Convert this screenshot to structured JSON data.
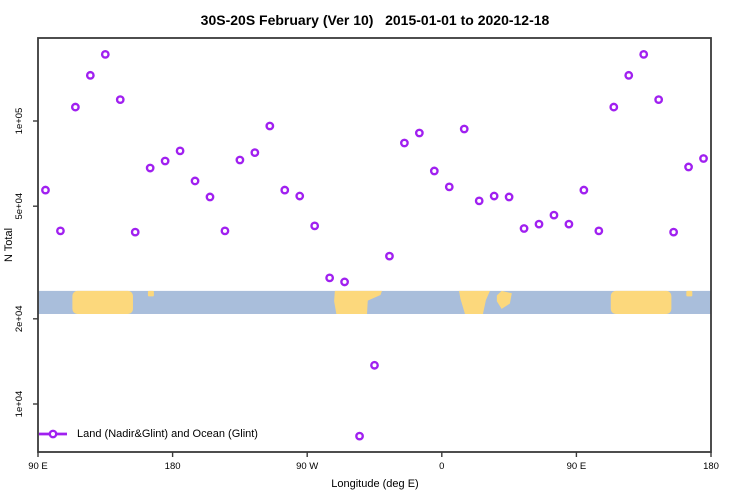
{
  "chart_data": {
    "type": "scatter",
    "title": "30S-20S February (Ver 10)   2015-01-01 to 2020-12-18",
    "xlabel": "Longitude (deg E)",
    "ylabel": "N Total",
    "y_scale": "log",
    "grid": false,
    "xlim": [
      90,
      540
    ],
    "ylim": [
      6800,
      196000
    ],
    "x_ticks": [
      {
        "deg": 90,
        "label": "90 E"
      },
      {
        "deg": 180,
        "label": "180"
      },
      {
        "deg": 270,
        "label": "90 W"
      },
      {
        "deg": 360,
        "label": "0"
      },
      {
        "deg": 450,
        "label": "90 E"
      },
      {
        "deg": 540,
        "label": "180"
      }
    ],
    "y_ticks": [
      {
        "value": 100000,
        "label": "1e+05"
      },
      {
        "value": 50000,
        "label": "5e+04"
      },
      {
        "value": 20000,
        "label": "2e+04"
      },
      {
        "value": 10000,
        "label": "1e+04"
      }
    ],
    "legend": {
      "label": "Land (Nadir&Glint) and Ocean (Glint)",
      "position": "bottom-left",
      "marker": "open-circle-on-line"
    },
    "colors": {
      "series": "#A020F0",
      "ocean": "#A9BEDB",
      "land": "#FCD87C",
      "axis": "#3a3a3a",
      "text": "#000000"
    },
    "series": [
      {
        "name": "Land (Nadir&Glint) and Ocean (Glint)",
        "color": "#A020F0",
        "marker": "open-circle",
        "x": [
          95,
          105,
          115,
          125,
          135,
          145,
          155,
          165,
          175,
          185,
          195,
          205,
          215,
          225,
          235,
          245,
          255,
          265,
          275,
          285,
          295,
          305,
          315,
          325,
          335,
          345,
          355,
          365,
          375,
          385,
          395,
          405,
          415,
          425,
          435,
          445,
          455,
          465,
          475,
          485,
          495,
          505,
          515,
          525,
          535
        ],
        "y": [
          57000,
          40900,
          112000,
          145000,
          172000,
          119000,
          40500,
          68200,
          72200,
          78400,
          61400,
          53900,
          40900,
          72800,
          77300,
          96000,
          57000,
          54300,
          42600,
          27900,
          27000,
          7700,
          13700,
          33300,
          83600,
          90700,
          66600,
          58500,
          93700,
          52200,
          54300,
          53900,
          41700,
          43200,
          46500,
          43200,
          57000,
          40900,
          112000,
          145000,
          172000,
          119000,
          40500,
          68800,
          73700
        ]
      }
    ],
    "map_band": {
      "description": "strip map of 30S-20S latitude belt across the longitude axis",
      "value_top": 25100,
      "value_bottom": 20800,
      "ocean_color": "#A9BEDB",
      "land_color": "#FCD87C",
      "land_patches": [
        {
          "name": "australia",
          "shape": "rect",
          "x0": 113,
          "x1": 153.5,
          "f0": 0,
          "f1": 1,
          "rx": 5
        },
        {
          "name": "new-caledonia",
          "shape": "rect",
          "x0": 163.5,
          "x1": 167.5,
          "f0": 0,
          "f1": 0.24,
          "rx": 1
        },
        {
          "name": "south-america",
          "shape": "poly",
          "pts": [
            [
              288.5,
              0
            ],
            [
              320,
              0
            ],
            [
              319,
              0.18
            ],
            [
              310.5,
              0.42
            ],
            [
              310,
              1
            ],
            [
              289.5,
              1
            ],
            [
              288,
              0.45
            ]
          ]
        },
        {
          "name": "africa",
          "shape": "poly",
          "pts": [
            [
              371.5,
              0
            ],
            [
              392.2,
              0
            ],
            [
              389.5,
              0.4
            ],
            [
              387.5,
              1
            ],
            [
              375.5,
              1
            ],
            [
              372.5,
              0.35
            ]
          ]
        },
        {
          "name": "madagascar",
          "shape": "poly",
          "pts": [
            [
              396.8,
              0.2
            ],
            [
              400,
              0
            ],
            [
              406.8,
              0.1
            ],
            [
              405.5,
              0.55
            ],
            [
              400,
              0.78
            ],
            [
              396.8,
              0.45
            ]
          ]
        },
        {
          "name": "australia",
          "shape": "rect",
          "x0": 473,
          "x1": 513.5,
          "f0": 0,
          "f1": 1,
          "rx": 5
        },
        {
          "name": "new-caledonia",
          "shape": "rect",
          "x0": 523.5,
          "x1": 527.5,
          "f0": 0,
          "f1": 0.24,
          "rx": 1
        }
      ]
    }
  }
}
